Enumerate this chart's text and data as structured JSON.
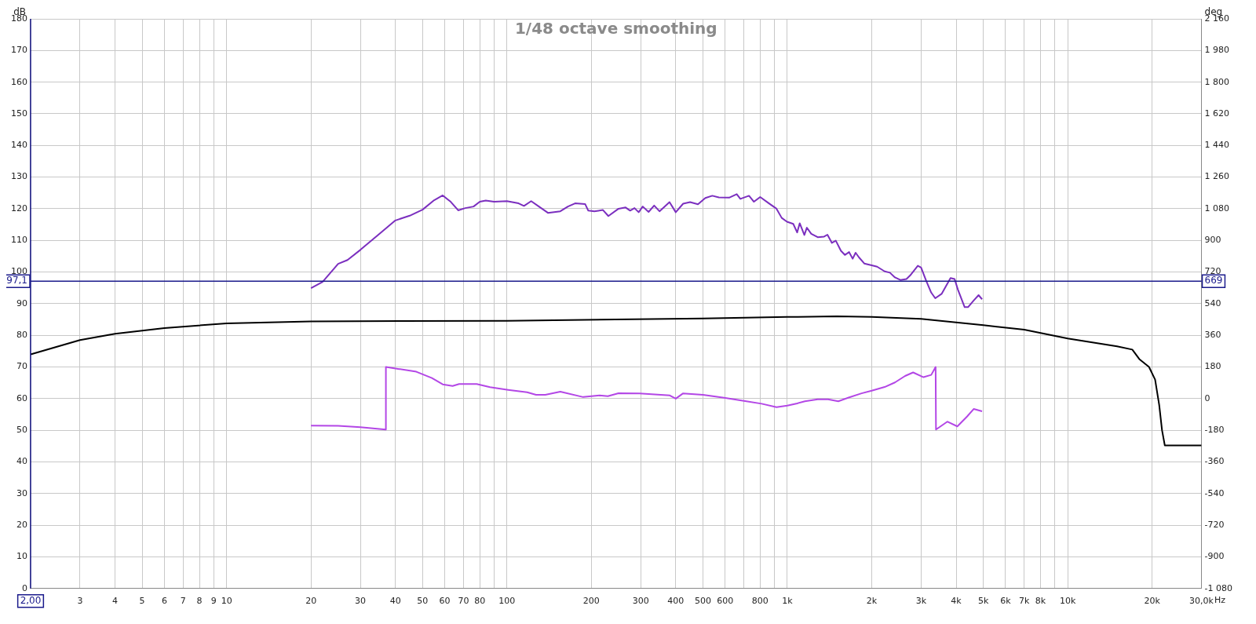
{
  "chart_data": {
    "type": "line",
    "title": "1/48 octave smoothing",
    "xlabel": "Hz",
    "annotations": [
      "669"
    ],
    "ylabel": "dB",
    "y2label": "deg",
    "log": "x",
    "grid": true,
    "legend": false,
    "marker": "none",
    "line_style": "solid",
    "xlim": [
      2,
      30000
    ],
    "xticks": [
      3,
      4,
      5,
      6,
      7,
      8,
      9,
      10,
      20,
      30,
      40,
      50,
      60,
      70,
      80,
      {
        "value": 90,
        "label": null
      },
      100,
      200,
      300,
      400,
      500,
      600,
      {
        "value": 700,
        "label": null
      },
      800,
      {
        "value": 900,
        "label": null
      },
      {
        "value": 1000,
        "label": "1k"
      },
      {
        "value": 2000,
        "label": "2k"
      },
      {
        "value": 3000,
        "label": "3k"
      },
      {
        "value": 4000,
        "label": "4k"
      },
      {
        "value": 5000,
        "label": "5k"
      },
      {
        "value": 6000,
        "label": "6k"
      },
      {
        "value": 7000,
        "label": "7k"
      },
      {
        "value": 8000,
        "label": "8k"
      },
      {
        "value": 9000,
        "label": null
      },
      {
        "value": 10000,
        "label": "10k"
      },
      {
        "value": 20000,
        "label": "20k"
      },
      {
        "value": 30000,
        "label": "30,0k"
      }
    ],
    "ylim": [
      0,
      180
    ],
    "yticks": [
      0,
      10,
      20,
      30,
      40,
      50,
      60,
      70,
      80,
      90,
      100,
      110,
      120,
      130,
      140,
      150,
      160,
      170,
      180
    ],
    "y2lim": [
      -1080,
      2160
    ],
    "y2ticks": [
      {
        "value": -1080,
        "label": "-1 080"
      },
      -900,
      -720,
      -540,
      -360,
      -180,
      0,
      180,
      360,
      540,
      720,
      900,
      {
        "value": 1080,
        "label": "1 080"
      },
      {
        "value": 1260,
        "label": "1 260"
      },
      {
        "value": 1440,
        "label": "1 440"
      },
      {
        "value": 1620,
        "label": "1 620"
      },
      {
        "value": 1800,
        "label": "1 800"
      },
      {
        "value": 1980,
        "label": "1 980"
      },
      {
        "value": 2160,
        "label": "2 160"
      }
    ],
    "ref_lines": [
      {
        "axis": "y",
        "value": 97.1,
        "label": "97,1",
        "color": "#1a1a8c"
      },
      {
        "axis": "x",
        "value": 2,
        "label": "2,00",
        "color": "#1a1a8c"
      }
    ],
    "series": [
      {
        "color": "#000000",
        "x": [
          2,
          3,
          4,
          6,
          10,
          20,
          100,
          500,
          1000,
          1500,
          2000,
          3000,
          5000,
          7000,
          10000,
          15000,
          17000,
          18000,
          19500,
          20500,
          21200,
          21700,
          22200,
          30000
        ],
        "values": [
          74,
          78.5,
          80.5,
          82.3,
          83.8,
          84.4,
          84.6,
          85.3,
          85.8,
          86,
          85.8,
          85.2,
          83.2,
          81.8,
          79,
          76.5,
          75.5,
          72.5,
          70,
          66,
          58,
          50,
          45.2,
          45.2
        ]
      },
      {
        "color": "#7b2fbf",
        "x": [
          20,
          22,
          25,
          27,
          30,
          35,
          40,
          45,
          50,
          55,
          59,
          63,
          67,
          71,
          76,
          80,
          84,
          90,
          100,
          110,
          115,
          122,
          130,
          140,
          155,
          165,
          175,
          190,
          195,
          205,
          220,
          230,
          250,
          265,
          275,
          285,
          295,
          305,
          320,
          335,
          350,
          380,
          400,
          425,
          450,
          480,
          510,
          540,
          570,
          620,
          660,
          680,
          730,
          760,
          800,
          860,
          915,
          955,
          997,
          1050,
          1084,
          1107,
          1150,
          1174,
          1217,
          1283,
          1353,
          1390,
          1442,
          1489,
          1553,
          1604,
          1661,
          1710,
          1752,
          1802,
          1881,
          1985,
          2090,
          2224,
          2322,
          2420,
          2530,
          2660,
          2740,
          2920,
          3000,
          3125,
          3260,
          3370,
          3550,
          3820,
          3950,
          4060,
          4290,
          4410,
          4620,
          4810,
          4950
        ],
        "values": [
          94.9,
          96.9,
          102.6,
          103.8,
          107,
          112,
          116.3,
          117.8,
          119.7,
          122.7,
          124.2,
          122.2,
          119.5,
          120.2,
          120.7,
          122.2,
          122.6,
          122.2,
          122.4,
          121.7,
          120.9,
          122.4,
          120.7,
          118.7,
          119.2,
          120.7,
          121.7,
          121.5,
          119.4,
          119.2,
          119.6,
          117.7,
          120,
          120.4,
          119.4,
          120.2,
          118.9,
          120.7,
          119,
          121,
          119.2,
          122.1,
          118.9,
          121.6,
          122.1,
          121.4,
          123.4,
          124.1,
          123.6,
          123.5,
          124.6,
          123.1,
          124.1,
          122.2,
          123.7,
          121.7,
          120,
          117.1,
          115.9,
          115.2,
          112.5,
          115.4,
          111.7,
          114,
          112.1,
          111,
          111.2,
          111.8,
          109.2,
          109.9,
          106.7,
          105.4,
          106.3,
          104.2,
          106.1,
          104.6,
          102.7,
          102.2,
          101.7,
          100.2,
          99.8,
          98.3,
          97.5,
          97.8,
          98.9,
          102,
          101.4,
          97.3,
          93.5,
          91.7,
          93.1,
          98.1,
          97.8,
          94.4,
          88.9,
          88.9,
          91,
          92.7,
          91.4
        ]
      },
      {
        "color": "#b347e6",
        "axis": "y2",
        "x": [
          20,
          25,
          30,
          36.9,
          37,
          47.5,
          54,
          59,
          64,
          67.5,
          78,
          87,
          101,
          118,
          127,
          137,
          155,
          187,
          214,
          229,
          250,
          297,
          381,
          400,
          424,
          500,
          595,
          700,
          810,
          915,
          1000,
          1084,
          1155,
          1283,
          1397,
          1520,
          1655,
          1840,
          2000,
          2224,
          2420,
          2630,
          2810,
          3060,
          3260,
          3380,
          3390,
          3720,
          4040,
          4380,
          4620,
          4950
        ],
        "values": [
          -153,
          -155,
          -162,
          -176,
          180,
          153,
          117,
          81,
          72,
          83,
          83,
          65,
          50,
          36,
          22,
          22,
          40,
          9,
          18,
          14,
          31,
          29,
          18,
          0,
          29,
          22,
          5,
          -13,
          -29,
          -49,
          -40,
          -27,
          -15,
          -4,
          -4,
          -15,
          6,
          30,
          45,
          66,
          92,
          129,
          149,
          122,
          135,
          180,
          -176,
          -131,
          -158,
          -101,
          -59,
          -72
        ]
      }
    ]
  }
}
